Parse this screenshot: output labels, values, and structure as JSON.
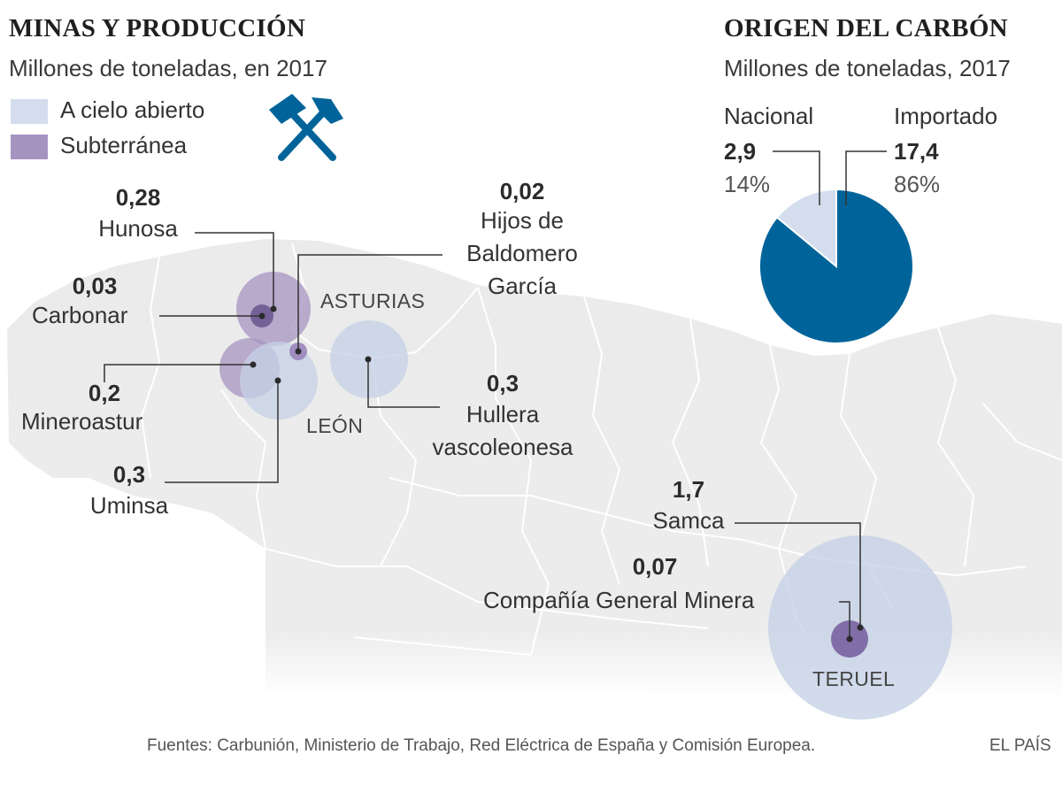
{
  "mines_panel": {
    "title": "MINAS Y PRODUCCIÓN",
    "subtitle": "Millones de toneladas, en 2017",
    "legend": [
      {
        "label": "A cielo abierto",
        "color": "#d3dded"
      },
      {
        "label": "Subterránea",
        "color": "#a694c0"
      }
    ],
    "icon": "crossed-hammers-icon"
  },
  "companies": [
    {
      "value": "0,28",
      "name": "Hunosa"
    },
    {
      "value": "0,03",
      "name": "Carbonar"
    },
    {
      "value": "0,2",
      "name": "Mineroastur"
    },
    {
      "value": "0,3",
      "name": "Uminsa"
    },
    {
      "value": "0,02",
      "name_lines": [
        "Hijos de",
        "Baldomero",
        "García"
      ]
    },
    {
      "value": "0,3",
      "name_lines": [
        "Hullera",
        "vascoleonesa"
      ]
    },
    {
      "value": "1,7",
      "name": "Samca"
    },
    {
      "value": "0,07",
      "name": "Compañía General Minera"
    }
  ],
  "regions": [
    "ASTURIAS",
    "LEÓN",
    "TERUEL"
  ],
  "origin_panel": {
    "title": "ORIGEN DEL CARBÓN",
    "subtitle": "Millones de toneladas, 2017",
    "slices": [
      {
        "name": "Nacional",
        "value": "2,9",
        "percent": "14%",
        "share": 14,
        "color": "#d3dded"
      },
      {
        "name": "Importado",
        "value": "17,4",
        "percent": "86%",
        "share": 86,
        "color": "#00649a"
      }
    ]
  },
  "footer": {
    "source": "Fuentes: Carbunión, Ministerio de Trabajo, Red Eléctrica de España y Comisión Europea.",
    "brand": "EL PAÍS"
  }
}
